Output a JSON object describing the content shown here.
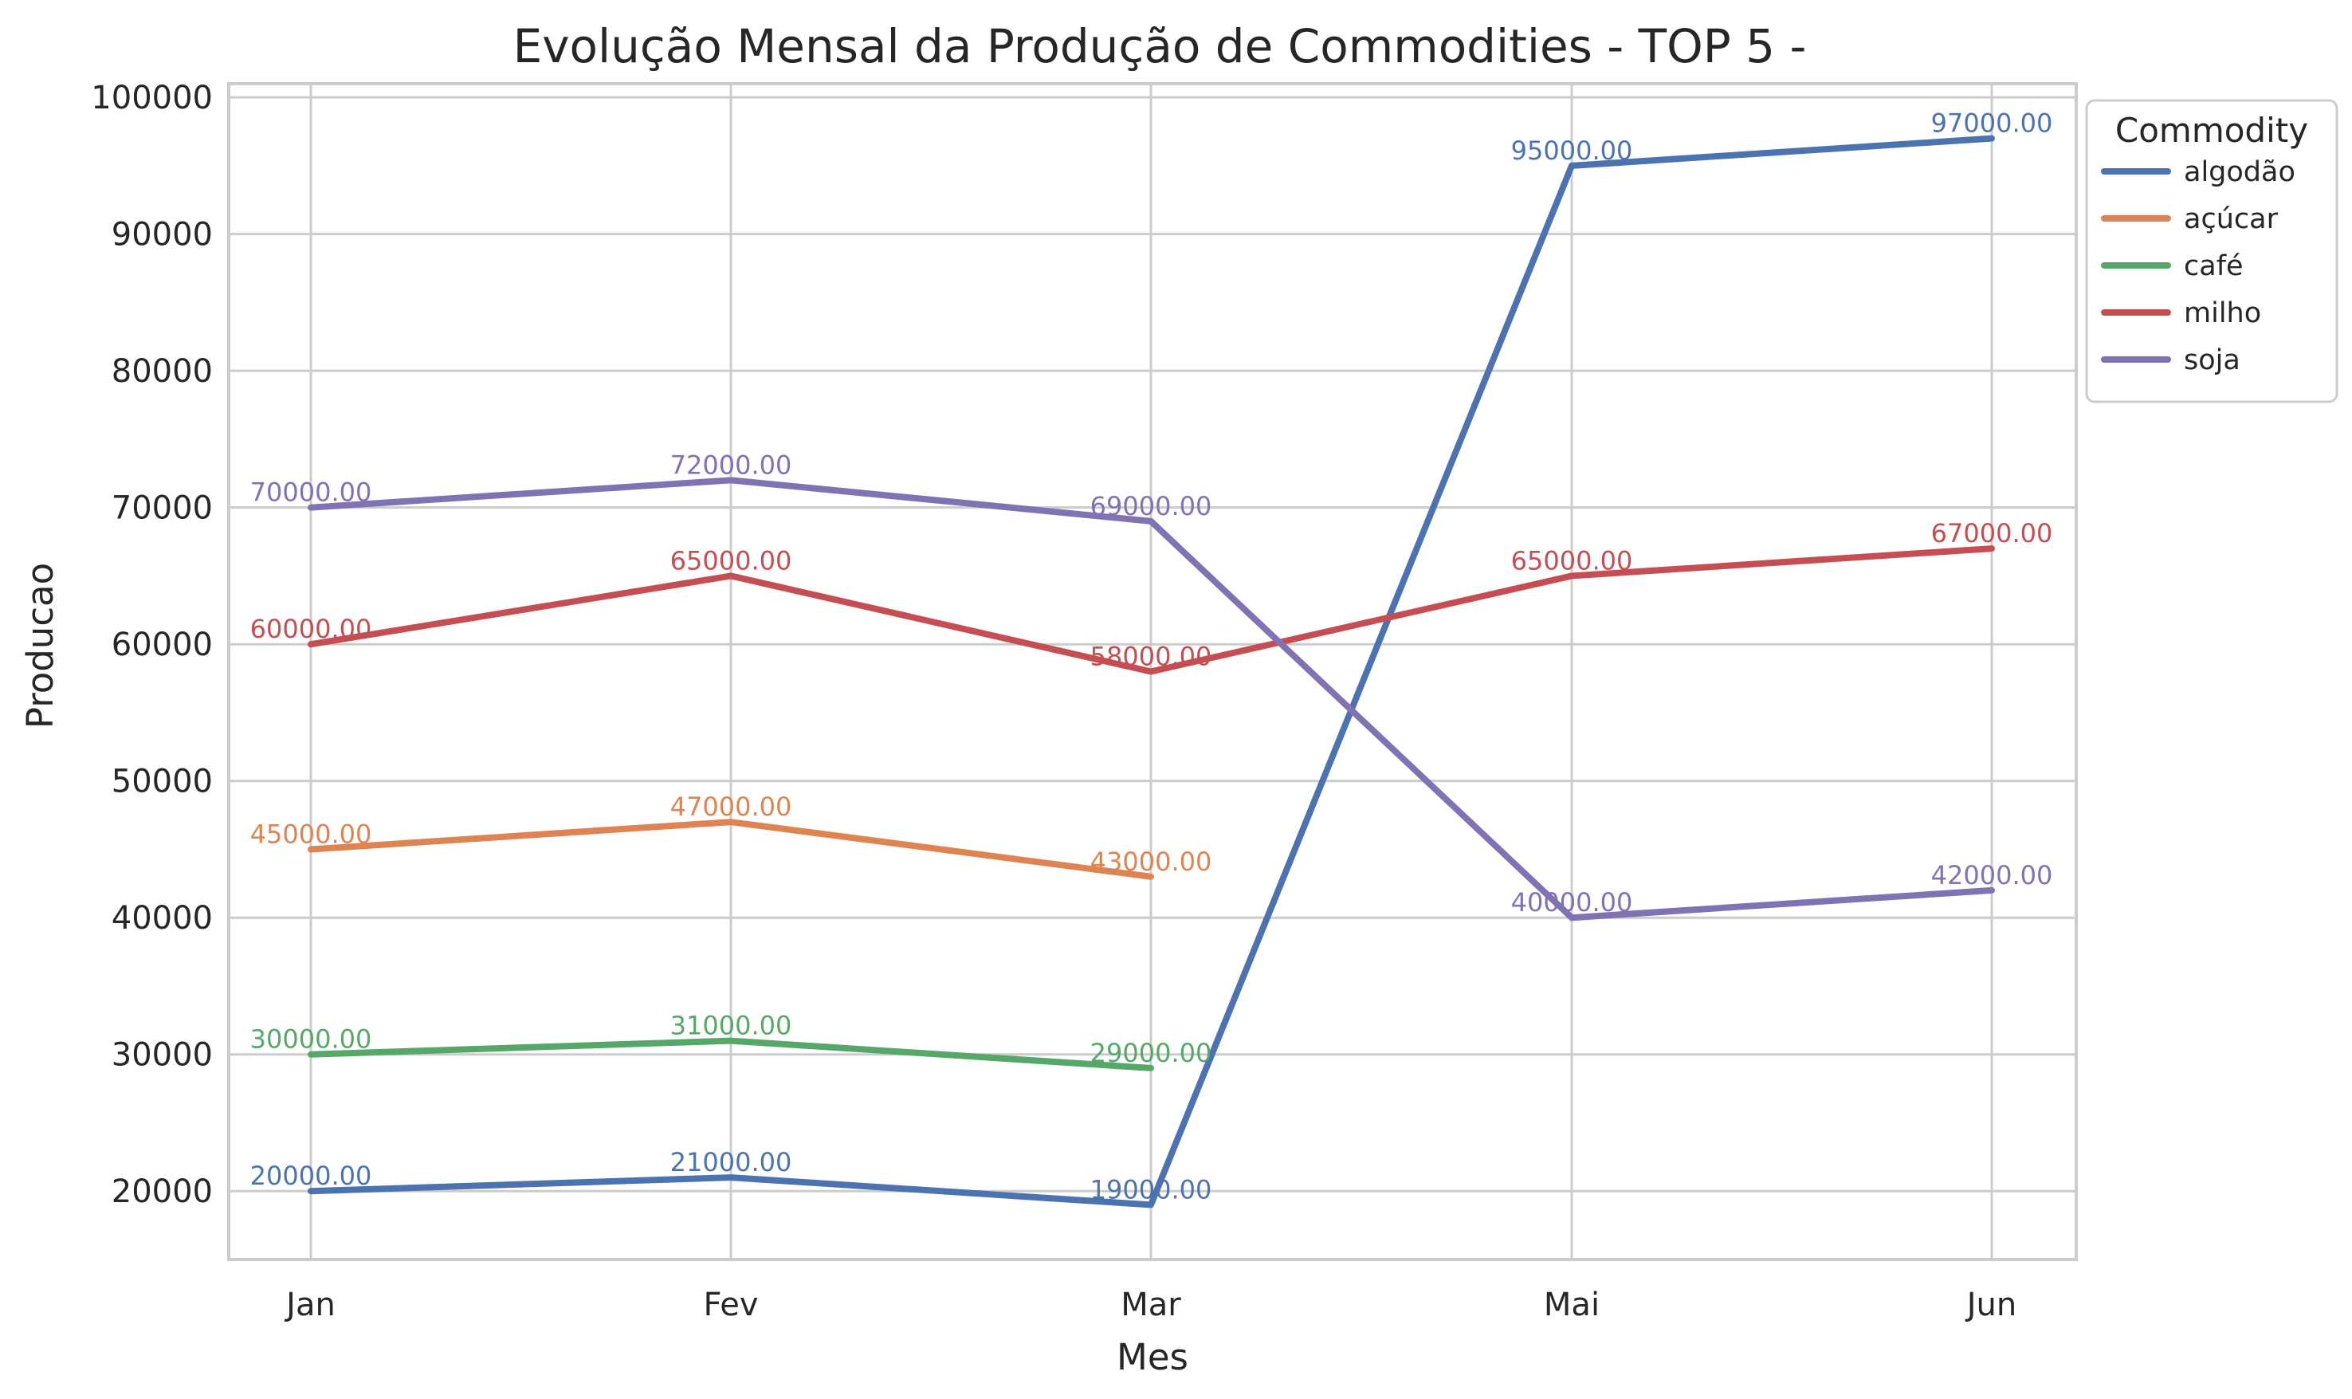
{
  "chart_data": {
    "type": "line",
    "title": "Evolução Mensal da Produção de Commodities - TOP 5 -",
    "xlabel": "Mes",
    "ylabel": "Producao",
    "categories": [
      "Jan",
      "Fev",
      "Mar",
      "Mai",
      "Jun"
    ],
    "ylim": [
      15000,
      101000
    ],
    "yticks": [
      20000,
      30000,
      40000,
      50000,
      60000,
      70000,
      80000,
      90000,
      100000
    ],
    "ytick_labels": [
      "20000",
      "30000",
      "40000",
      "50000",
      "60000",
      "70000",
      "80000",
      "90000",
      "100000"
    ],
    "grid": true,
    "legend": {
      "title": "Commodity",
      "placement": "outside-top-right"
    },
    "series": [
      {
        "name": "algodão",
        "color": "#4c72b0",
        "values": [
          20000,
          21000,
          19000,
          95000,
          97000
        ],
        "labels": [
          "20000.00",
          "21000.00",
          "19000.00",
          "95000.00",
          "97000.00"
        ]
      },
      {
        "name": "açúcar",
        "color": "#dd8452",
        "values": [
          45000,
          47000,
          43000,
          null,
          null
        ],
        "labels": [
          "45000.00",
          "47000.00",
          "43000.00",
          null,
          null
        ]
      },
      {
        "name": "café",
        "color": "#55a868",
        "values": [
          30000,
          31000,
          29000,
          null,
          null
        ],
        "labels": [
          "30000.00",
          "31000.00",
          "29000.00",
          null,
          null
        ]
      },
      {
        "name": "milho",
        "color": "#c44e52",
        "values": [
          60000,
          65000,
          58000,
          65000,
          67000
        ],
        "labels": [
          "60000.00",
          "65000.00",
          "58000.00",
          "65000.00",
          "67000.00"
        ]
      },
      {
        "name": "soja",
        "color": "#8172b3",
        "values": [
          70000,
          72000,
          69000,
          40000,
          42000
        ],
        "labels": [
          "70000.00",
          "72000.00",
          "69000.00",
          "40000.00",
          "42000.00"
        ]
      }
    ]
  }
}
